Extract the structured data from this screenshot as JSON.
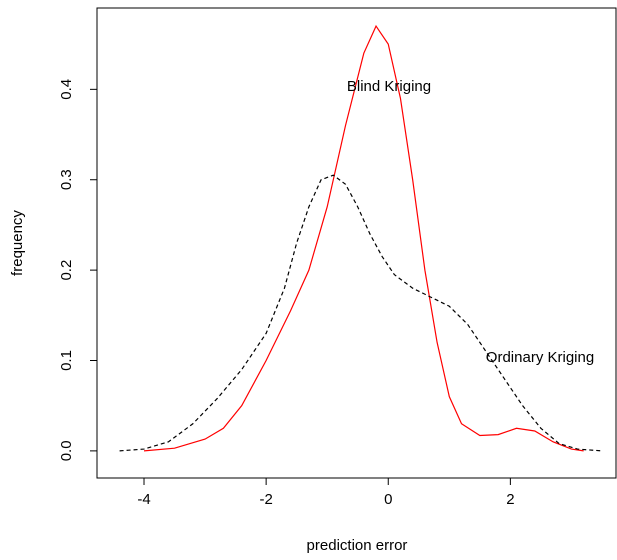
{
  "chart_data": {
    "type": "line",
    "x_label": "prediction error",
    "y_label": "frequency",
    "xlim": [
      -4.77,
      3.73
    ],
    "ylim": [
      -0.03,
      0.49
    ],
    "xticks": [
      -4,
      -2,
      0,
      2
    ],
    "yticks": [
      {
        "value": 0,
        "label": "0.0"
      },
      0.1,
      0.2,
      0.3,
      0.4
    ],
    "series": [
      {
        "name": "Blind Kriging",
        "color": "#ff0000",
        "dash": false,
        "x": [
          -4.0,
          -3.5,
          -3.0,
          -2.7,
          -2.4,
          -2.0,
          -1.6,
          -1.3,
          -1.0,
          -0.7,
          -0.4,
          -0.2,
          0.0,
          0.2,
          0.4,
          0.6,
          0.8,
          1.0,
          1.2,
          1.5,
          1.8,
          2.1,
          2.4,
          2.7,
          3.0,
          3.2
        ],
        "values": [
          0.0,
          0.003,
          0.013,
          0.025,
          0.05,
          0.1,
          0.155,
          0.2,
          0.27,
          0.36,
          0.44,
          0.47,
          0.45,
          0.39,
          0.3,
          0.2,
          0.12,
          0.06,
          0.03,
          0.017,
          0.018,
          0.025,
          0.022,
          0.01,
          0.002,
          0.0
        ]
      },
      {
        "name": "Ordinary Kriging",
        "color": "#000000",
        "dash": true,
        "x": [
          -4.4,
          -4.0,
          -3.6,
          -3.2,
          -2.8,
          -2.4,
          -2.0,
          -1.7,
          -1.5,
          -1.3,
          -1.1,
          -0.9,
          -0.7,
          -0.5,
          -0.3,
          -0.1,
          0.1,
          0.4,
          0.7,
          1.0,
          1.3,
          1.6,
          1.9,
          2.2,
          2.5,
          2.8,
          3.1,
          3.5
        ],
        "values": [
          0.0,
          0.002,
          0.01,
          0.03,
          0.058,
          0.09,
          0.13,
          0.18,
          0.23,
          0.27,
          0.3,
          0.305,
          0.295,
          0.27,
          0.24,
          0.215,
          0.195,
          0.18,
          0.17,
          0.16,
          0.14,
          0.11,
          0.08,
          0.05,
          0.025,
          0.008,
          0.002,
          0.0
        ]
      }
    ]
  }
}
